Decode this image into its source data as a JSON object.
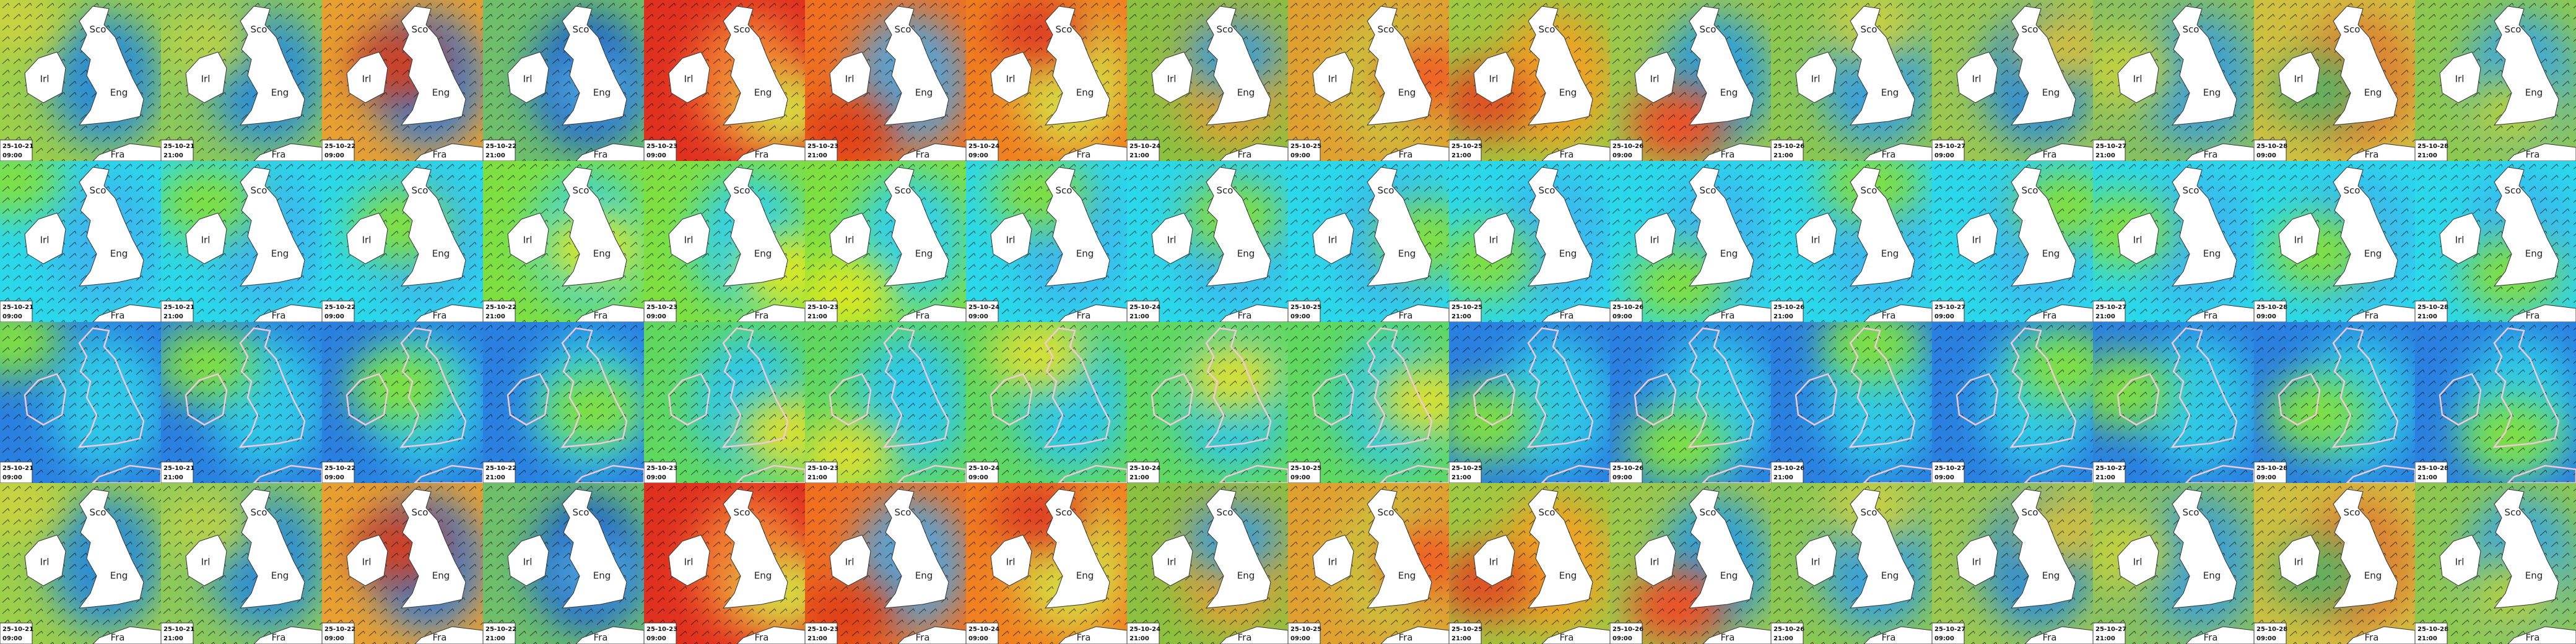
{
  "map_labels": {
    "north": "Sco",
    "west": "Irl",
    "east": "Eng",
    "south": "Fra"
  },
  "columns": [
    {
      "date": "25-10-21",
      "time": "09:00"
    },
    {
      "date": "25-10-21",
      "time": "21:00"
    },
    {
      "date": "25-10-22",
      "time": "09:00"
    },
    {
      "date": "25-10-22",
      "time": "21:00"
    },
    {
      "date": "25-10-23",
      "time": "09:00"
    },
    {
      "date": "25-10-23",
      "time": "21:00"
    },
    {
      "date": "25-10-24",
      "time": "09:00"
    },
    {
      "date": "25-10-24",
      "time": "21:00"
    },
    {
      "date": "25-10-25",
      "time": "09:00"
    },
    {
      "date": "25-10-25",
      "time": "21:00"
    },
    {
      "date": "25-10-26",
      "time": "09:00"
    },
    {
      "date": "25-10-26",
      "time": "21:00"
    },
    {
      "date": "25-10-27",
      "time": "09:00"
    },
    {
      "date": "25-10-27",
      "time": "21:00"
    },
    {
      "date": "25-10-28",
      "time": "09:00"
    },
    {
      "date": "25-10-28",
      "time": "21:00"
    }
  ]
}
